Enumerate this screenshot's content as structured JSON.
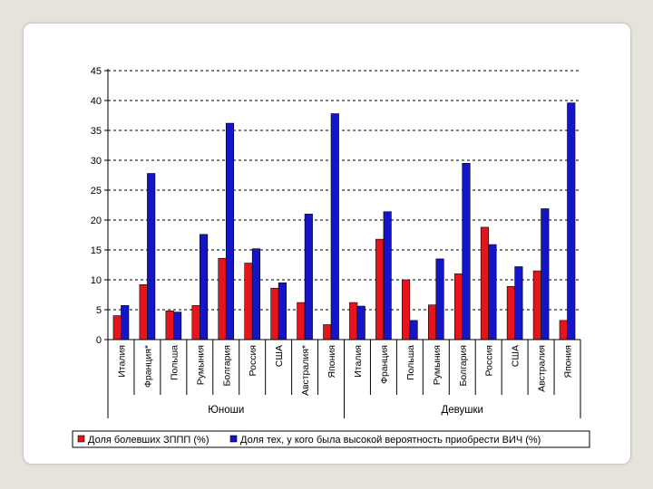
{
  "chart_data": {
    "type": "bar",
    "ylim": [
      0,
      45
    ],
    "yticks": [
      0,
      5,
      10,
      15,
      20,
      25,
      30,
      35,
      40,
      45
    ],
    "grid": true,
    "legend_position": "bottom",
    "groups": [
      {
        "label": "Юноши",
        "categories": [
          "Италия",
          "Франция*",
          "Польша",
          "Румыния",
          "Болгария",
          "Россия",
          "США",
          "Австралия*",
          "Япония"
        ]
      },
      {
        "label": "Девушки",
        "categories": [
          "Италия",
          "Франция",
          "Польша",
          "Румыния",
          "Болгария",
          "Россия",
          "США",
          "Австралия",
          "Япония"
        ]
      }
    ],
    "series": [
      {
        "name": "Доля болевших ЗППП (%)",
        "color": "#e8141c",
        "values": [
          4,
          9.2,
          4.8,
          5.7,
          13.6,
          12.8,
          8.6,
          6.2,
          2.5,
          6.2,
          16.8,
          10,
          5.8,
          11,
          18.8,
          8.9,
          11.5,
          3.2
        ]
      },
      {
        "name": "Доля тех, у кого была высокой вероятность приобрести ВИЧ (%)",
        "color": "#1414c8",
        "values": [
          5.7,
          27.8,
          4.6,
          17.6,
          36.2,
          15.2,
          9.5,
          21,
          37.8,
          5.6,
          21.4,
          3.2,
          13.5,
          29.5,
          15.9,
          12.2,
          21.9,
          39.6
        ]
      }
    ]
  }
}
